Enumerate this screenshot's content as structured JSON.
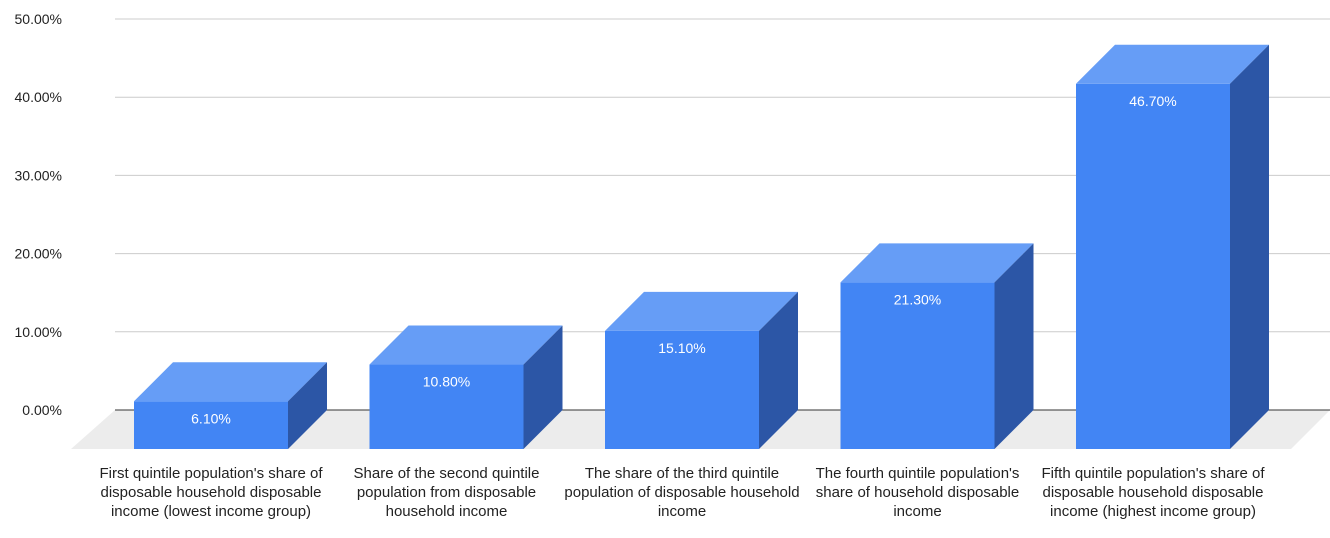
{
  "chart_data": {
    "type": "bar",
    "categories": [
      "First quintile population's share of disposable household disposable income (lowest income group)",
      "Share of the second quintile population from disposable household income",
      "The share of the third quintile population of disposable household income",
      "The fourth quintile population's share of household disposable income",
      "Fifth quintile population's share of disposable household disposable income (highest income group)"
    ],
    "values": [
      6.1,
      10.8,
      15.1,
      21.3,
      46.7
    ],
    "data_labels": [
      "6.10%",
      "10.80%",
      "15.10%",
      "21.30%",
      "46.70%"
    ],
    "y_ticks": [
      "0.00%",
      "10.00%",
      "20.00%",
      "30.00%",
      "40.00%",
      "50.00%"
    ],
    "ylim": [
      0,
      50
    ],
    "grid": true,
    "legend": "none",
    "style": "3d",
    "colors": {
      "bar_front": "#4285f4",
      "bar_top": "#669df6",
      "bar_side": "#2c56a6",
      "floor": "#ececec",
      "grid": "#cccccc",
      "axis": "#333333"
    }
  }
}
